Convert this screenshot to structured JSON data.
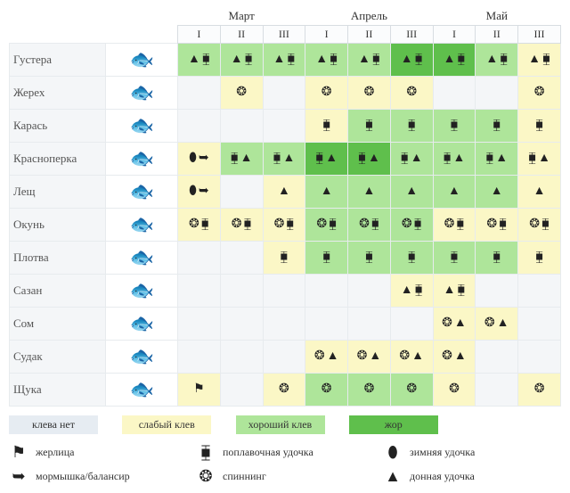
{
  "months": [
    "Март",
    "Апрель",
    "Май"
  ],
  "periods": [
    "I",
    "II",
    "III"
  ],
  "activity_levels": {
    "none": {
      "label": "клева нет",
      "color": "#c6d4e3"
    },
    "weak": {
      "label": "слабый клев",
      "color": "#fbf7c6"
    },
    "good": {
      "label": "хороший клев",
      "color": "#aee59a"
    },
    "zhor": {
      "label": "жор",
      "color": "#5fbf4c"
    }
  },
  "gear": {
    "zherlitsa": {
      "label": "жерлица",
      "glyph": "⚑"
    },
    "mormyshka": {
      "label": "мормышка/балансир",
      "glyph": "➥"
    },
    "float": {
      "label": "поплавочная удочка",
      "glyph": "⧯"
    },
    "spinning": {
      "label": "спиннинг",
      "glyph": "❂"
    },
    "winter": {
      "label": "зимняя удочка",
      "glyph": "⬮"
    },
    "bottom": {
      "label": "донная удочка",
      "glyph": "▲"
    }
  },
  "fish": [
    {
      "name": "Густера",
      "rows": [
        {
          "a": "good",
          "g": [
            "bottom",
            "float"
          ]
        },
        {
          "a": "good",
          "g": [
            "bottom",
            "float"
          ]
        },
        {
          "a": "good",
          "g": [
            "bottom",
            "float"
          ]
        },
        {
          "a": "good",
          "g": [
            "bottom",
            "float"
          ]
        },
        {
          "a": "good",
          "g": [
            "bottom",
            "float"
          ]
        },
        {
          "a": "zhor",
          "g": [
            "bottom",
            "float"
          ]
        },
        {
          "a": "zhor",
          "g": [
            "bottom",
            "float"
          ]
        },
        {
          "a": "good",
          "g": [
            "bottom",
            "float"
          ]
        },
        {
          "a": "weak",
          "g": [
            "bottom",
            "float"
          ]
        }
      ]
    },
    {
      "name": "Жерех",
      "rows": [
        {
          "a": "none",
          "g": []
        },
        {
          "a": "weak",
          "g": [
            "spinning"
          ]
        },
        {
          "a": "none",
          "g": []
        },
        {
          "a": "weak",
          "g": [
            "spinning"
          ]
        },
        {
          "a": "weak",
          "g": [
            "spinning"
          ]
        },
        {
          "a": "weak",
          "g": [
            "spinning"
          ]
        },
        {
          "a": "none",
          "g": []
        },
        {
          "a": "none",
          "g": []
        },
        {
          "a": "weak",
          "g": [
            "spinning"
          ]
        }
      ]
    },
    {
      "name": "Карась",
      "rows": [
        {
          "a": "none",
          "g": []
        },
        {
          "a": "none",
          "g": []
        },
        {
          "a": "none",
          "g": []
        },
        {
          "a": "weak",
          "g": [
            "float"
          ]
        },
        {
          "a": "good",
          "g": [
            "float"
          ]
        },
        {
          "a": "good",
          "g": [
            "float"
          ]
        },
        {
          "a": "good",
          "g": [
            "float"
          ]
        },
        {
          "a": "good",
          "g": [
            "float"
          ]
        },
        {
          "a": "weak",
          "g": [
            "float"
          ]
        }
      ]
    },
    {
      "name": "Красноперка",
      "rows": [
        {
          "a": "weak",
          "g": [
            "winter",
            "mormyshka"
          ]
        },
        {
          "a": "good",
          "g": [
            "float",
            "bottom"
          ]
        },
        {
          "a": "good",
          "g": [
            "float",
            "bottom"
          ]
        },
        {
          "a": "zhor",
          "g": [
            "float",
            "bottom"
          ]
        },
        {
          "a": "zhor",
          "g": [
            "float",
            "bottom"
          ]
        },
        {
          "a": "good",
          "g": [
            "float",
            "bottom"
          ]
        },
        {
          "a": "good",
          "g": [
            "float",
            "bottom"
          ]
        },
        {
          "a": "good",
          "g": [
            "float",
            "bottom"
          ]
        },
        {
          "a": "weak",
          "g": [
            "float",
            "bottom"
          ]
        }
      ]
    },
    {
      "name": "Лещ",
      "rows": [
        {
          "a": "weak",
          "g": [
            "winter",
            "mormyshka"
          ]
        },
        {
          "a": "none",
          "g": []
        },
        {
          "a": "weak",
          "g": [
            "bottom"
          ]
        },
        {
          "a": "good",
          "g": [
            "bottom"
          ]
        },
        {
          "a": "good",
          "g": [
            "bottom"
          ]
        },
        {
          "a": "good",
          "g": [
            "bottom"
          ]
        },
        {
          "a": "good",
          "g": [
            "bottom"
          ]
        },
        {
          "a": "good",
          "g": [
            "bottom"
          ]
        },
        {
          "a": "weak",
          "g": [
            "bottom"
          ]
        }
      ]
    },
    {
      "name": "Окунь",
      "rows": [
        {
          "a": "weak",
          "g": [
            "spinning",
            "float"
          ]
        },
        {
          "a": "weak",
          "g": [
            "spinning",
            "float"
          ]
        },
        {
          "a": "weak",
          "g": [
            "spinning",
            "float"
          ]
        },
        {
          "a": "good",
          "g": [
            "spinning",
            "float"
          ]
        },
        {
          "a": "good",
          "g": [
            "spinning",
            "float"
          ]
        },
        {
          "a": "good",
          "g": [
            "spinning",
            "float"
          ]
        },
        {
          "a": "weak",
          "g": [
            "spinning",
            "float"
          ]
        },
        {
          "a": "weak",
          "g": [
            "spinning",
            "float"
          ]
        },
        {
          "a": "weak",
          "g": [
            "spinning",
            "float"
          ]
        }
      ]
    },
    {
      "name": "Плотва",
      "rows": [
        {
          "a": "none",
          "g": []
        },
        {
          "a": "none",
          "g": []
        },
        {
          "a": "weak",
          "g": [
            "float"
          ]
        },
        {
          "a": "good",
          "g": [
            "float"
          ]
        },
        {
          "a": "good",
          "g": [
            "float"
          ]
        },
        {
          "a": "good",
          "g": [
            "float"
          ]
        },
        {
          "a": "good",
          "g": [
            "float"
          ]
        },
        {
          "a": "good",
          "g": [
            "float"
          ]
        },
        {
          "a": "weak",
          "g": [
            "float"
          ]
        }
      ]
    },
    {
      "name": "Сазан",
      "rows": [
        {
          "a": "none",
          "g": []
        },
        {
          "a": "none",
          "g": []
        },
        {
          "a": "none",
          "g": []
        },
        {
          "a": "none",
          "g": []
        },
        {
          "a": "none",
          "g": []
        },
        {
          "a": "weak",
          "g": [
            "bottom",
            "float"
          ]
        },
        {
          "a": "weak",
          "g": [
            "bottom",
            "float"
          ]
        },
        {
          "a": "none",
          "g": []
        },
        {
          "a": "none",
          "g": []
        }
      ]
    },
    {
      "name": "Сом",
      "rows": [
        {
          "a": "none",
          "g": []
        },
        {
          "a": "none",
          "g": []
        },
        {
          "a": "none",
          "g": []
        },
        {
          "a": "none",
          "g": []
        },
        {
          "a": "none",
          "g": []
        },
        {
          "a": "none",
          "g": []
        },
        {
          "a": "weak",
          "g": [
            "spinning",
            "bottom"
          ]
        },
        {
          "a": "weak",
          "g": [
            "spinning",
            "bottom"
          ]
        },
        {
          "a": "none",
          "g": []
        }
      ]
    },
    {
      "name": "Судак",
      "rows": [
        {
          "a": "none",
          "g": []
        },
        {
          "a": "none",
          "g": []
        },
        {
          "a": "none",
          "g": []
        },
        {
          "a": "weak",
          "g": [
            "spinning",
            "bottom"
          ]
        },
        {
          "a": "weak",
          "g": [
            "spinning",
            "bottom"
          ]
        },
        {
          "a": "weak",
          "g": [
            "spinning",
            "bottom"
          ]
        },
        {
          "a": "weak",
          "g": [
            "spinning",
            "bottom"
          ]
        },
        {
          "a": "none",
          "g": []
        },
        {
          "a": "none",
          "g": []
        }
      ]
    },
    {
      "name": "Щука",
      "rows": [
        {
          "a": "weak",
          "g": [
            "zherlitsa"
          ]
        },
        {
          "a": "none",
          "g": []
        },
        {
          "a": "weak",
          "g": [
            "spinning"
          ]
        },
        {
          "a": "good",
          "g": [
            "spinning"
          ]
        },
        {
          "a": "good",
          "g": [
            "spinning"
          ]
        },
        {
          "a": "good",
          "g": [
            "spinning"
          ]
        },
        {
          "a": "weak",
          "g": [
            "spinning"
          ]
        },
        {
          "a": "none",
          "g": []
        },
        {
          "a": "weak",
          "g": [
            "spinning"
          ]
        }
      ]
    }
  ],
  "fish_glyph": "🐟",
  "colors": {
    "grid_border": "#e7ebee",
    "header_bg": "#fbfcfd",
    "text": "#333333"
  },
  "typography": {
    "font_family": "Georgia, serif",
    "body_size_pt": 10,
    "header_size_pt": 10
  }
}
